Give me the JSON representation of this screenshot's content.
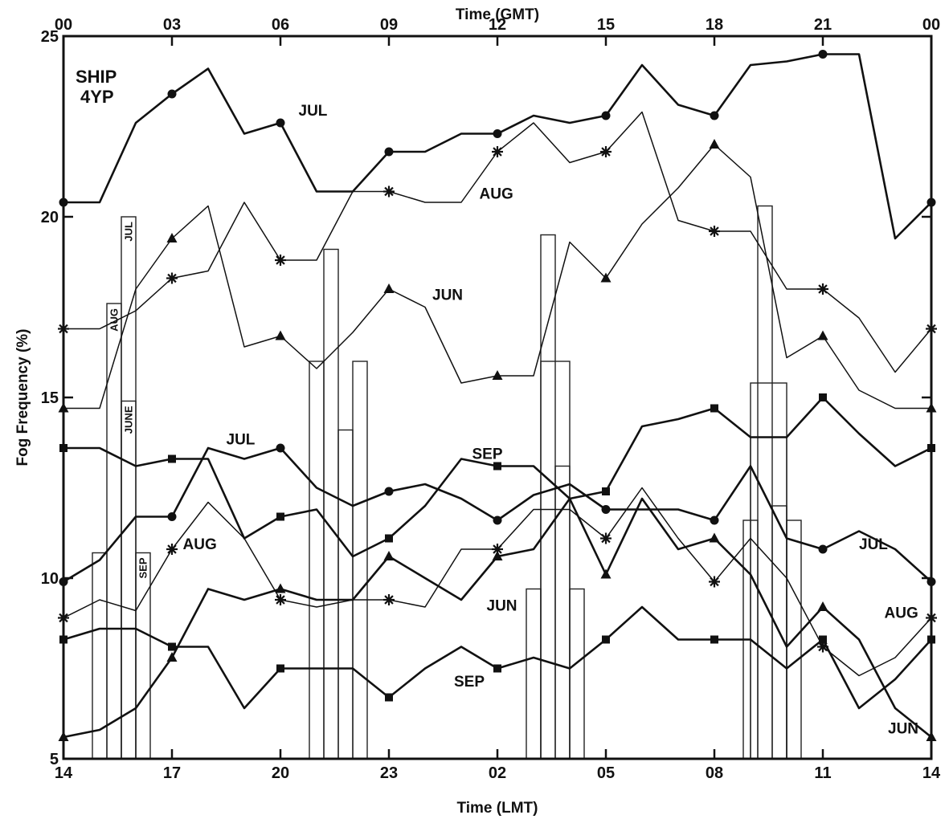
{
  "chart_data": {
    "type": "line",
    "ship_label": [
      "SHIP",
      "4YP"
    ],
    "xlabel_bottom": "Time (LMT)",
    "xlabel_top": "Time (GMT)",
    "ylabel": "Fog Frequency (%)",
    "ylim": [
      5,
      25
    ],
    "yticks": [
      5,
      10,
      15,
      20,
      25
    ],
    "xlim": [
      0,
      24
    ],
    "bottom_ticks": [
      "14",
      "17",
      "20",
      "23",
      "02",
      "05",
      "08",
      "11",
      "14"
    ],
    "top_ticks": [
      "00",
      "03",
      "06",
      "09",
      "12",
      "15",
      "18",
      "21",
      "00"
    ],
    "tick_positions": [
      0,
      3,
      6,
      9,
      12,
      15,
      18,
      21,
      24
    ],
    "series": [
      {
        "name": "JUN",
        "group": "upper",
        "marker": "triangle",
        "weight": 1.5,
        "x": [
          0,
          1,
          2,
          3,
          4,
          5,
          6,
          7,
          8,
          9,
          10,
          11,
          12,
          13,
          14,
          15,
          16,
          17,
          18,
          19,
          20,
          21,
          22,
          23,
          24
        ],
        "y": [
          14.7,
          14.7,
          18,
          19.4,
          20.3,
          16.4,
          16.7,
          15.8,
          16.8,
          18,
          17.5,
          15.4,
          15.6,
          15.6,
          19.3,
          18.3,
          19.8,
          20.8,
          22,
          21.1,
          16.1,
          16.7,
          15.2,
          14.7,
          14.7
        ]
      },
      {
        "name": "JUL",
        "group": "upper",
        "marker": "circle",
        "weight": 2.6,
        "x": [
          0,
          1,
          2,
          3,
          4,
          5,
          6,
          7,
          8,
          9,
          10,
          11,
          12,
          13,
          14,
          15,
          16,
          17,
          18,
          19,
          20,
          21,
          22,
          23,
          24
        ],
        "y": [
          20.4,
          20.4,
          22.6,
          23.4,
          24.1,
          22.3,
          22.6,
          20.7,
          20.7,
          21.8,
          21.8,
          22.3,
          22.3,
          22.8,
          22.6,
          22.8,
          24.2,
          23.1,
          22.8,
          24.2,
          24.3,
          24.5,
          24.5,
          19.4,
          20.4
        ]
      },
      {
        "name": "AUG",
        "group": "upper",
        "marker": "star",
        "weight": 1.5,
        "x": [
          0,
          1,
          2,
          3,
          4,
          5,
          6,
          7,
          8,
          9,
          10,
          11,
          12,
          13,
          14,
          15,
          16,
          17,
          18,
          19,
          20,
          21,
          22,
          23,
          24
        ],
        "y": [
          16.9,
          16.9,
          17.4,
          18.3,
          18.5,
          20.4,
          18.8,
          18.8,
          20.7,
          20.7,
          20.4,
          20.4,
          21.8,
          22.6,
          21.5,
          21.8,
          22.9,
          19.9,
          19.6,
          19.6,
          18,
          18,
          17.2,
          15.7,
          16.9
        ]
      },
      {
        "name": "SEP",
        "group": "upper",
        "marker": "square",
        "weight": 2.6,
        "x": [
          0,
          1,
          2,
          3,
          4,
          5,
          6,
          7,
          8,
          9,
          10,
          11,
          12,
          13,
          14,
          15,
          16,
          17,
          18,
          19,
          20,
          21,
          22,
          23,
          24
        ],
        "y": [
          13.6,
          13.6,
          13.1,
          13.3,
          13.3,
          11.1,
          11.7,
          11.9,
          10.6,
          11.1,
          12,
          13.3,
          13.1,
          13.1,
          12.2,
          12.4,
          14.2,
          14.4,
          14.7,
          13.9,
          13.9,
          15,
          14,
          13.1,
          13.6
        ]
      },
      {
        "name": "JUN",
        "group": "lower",
        "marker": "triangle",
        "weight": 2.6,
        "x": [
          0,
          1,
          2,
          3,
          4,
          5,
          6,
          7,
          8,
          9,
          10,
          11,
          12,
          13,
          14,
          15,
          16,
          17,
          18,
          19,
          20,
          21,
          22,
          23,
          24
        ],
        "y": [
          5.6,
          5.8,
          6.4,
          7.8,
          9.7,
          9.4,
          9.7,
          9.4,
          9.4,
          10.6,
          10,
          9.4,
          10.6,
          10.8,
          12.2,
          10.1,
          12.2,
          10.8,
          11.1,
          10.1,
          8.1,
          9.2,
          8.3,
          6.4,
          5.6
        ]
      },
      {
        "name": "JUL",
        "group": "lower",
        "marker": "circle",
        "weight": 2.6,
        "x": [
          0,
          1,
          2,
          3,
          4,
          5,
          6,
          7,
          8,
          9,
          10,
          11,
          12,
          13,
          14,
          15,
          16,
          17,
          18,
          19,
          20,
          21,
          22,
          23,
          24
        ],
        "y": [
          9.9,
          10.5,
          11.7,
          11.7,
          13.6,
          13.3,
          13.6,
          12.5,
          12,
          12.4,
          12.6,
          12.2,
          11.6,
          12.3,
          12.6,
          11.9,
          11.9,
          11.9,
          11.6,
          13.1,
          11.1,
          10.8,
          11.3,
          10.8,
          9.9
        ]
      },
      {
        "name": "AUG",
        "group": "lower",
        "marker": "star",
        "weight": 1.5,
        "x": [
          0,
          1,
          2,
          3,
          4,
          5,
          6,
          7,
          8,
          9,
          10,
          11,
          12,
          13,
          14,
          15,
          16,
          17,
          18,
          19,
          20,
          21,
          22,
          23,
          24
        ],
        "y": [
          8.9,
          9.4,
          9.1,
          10.8,
          12.1,
          11.1,
          9.4,
          9.2,
          9.4,
          9.4,
          9.2,
          10.8,
          10.8,
          11.9,
          11.9,
          11.1,
          12.5,
          11.1,
          9.9,
          11.1,
          10,
          8.1,
          7.3,
          7.8,
          8.9
        ]
      },
      {
        "name": "SEP",
        "group": "lower",
        "marker": "square",
        "weight": 2.6,
        "x": [
          0,
          1,
          2,
          3,
          4,
          5,
          6,
          7,
          8,
          9,
          10,
          11,
          12,
          13,
          14,
          15,
          16,
          17,
          18,
          19,
          20,
          21,
          22,
          23,
          24
        ],
        "y": [
          8.3,
          8.6,
          8.6,
          8.1,
          8.1,
          6.4,
          7.5,
          7.5,
          7.5,
          6.7,
          7.5,
          8.1,
          7.5,
          7.8,
          7.5,
          8.3,
          9.2,
          8.3,
          8.3,
          8.3,
          7.5,
          8.3,
          6.4,
          7.2,
          8.3
        ]
      }
    ],
    "series_labels": [
      {
        "text": "JUL",
        "x": 6.5,
        "y": 22.8
      },
      {
        "text": "AUG",
        "x": 11.5,
        "y": 20.5
      },
      {
        "text": "JUN",
        "x": 10.2,
        "y": 17.7
      },
      {
        "text": "JUL",
        "x": 4.5,
        "y": 13.7
      },
      {
        "text": "SEP",
        "x": 11.3,
        "y": 13.3
      },
      {
        "text": "AUG",
        "x": 3.3,
        "y": 10.8
      },
      {
        "text": "JUL",
        "x": 22,
        "y": 10.8
      },
      {
        "text": "JUN",
        "x": 11.7,
        "y": 9.1
      },
      {
        "text": "AUG",
        "x": 22.7,
        "y": 8.9
      },
      {
        "text": "SEP",
        "x": 10.8,
        "y": 7.0
      },
      {
        "text": "JUN",
        "x": 22.8,
        "y": 5.7
      }
    ],
    "bars": [
      {
        "x0": 0.8,
        "x1": 1.2,
        "y": 10.7
      },
      {
        "x0": 1.2,
        "x1": 1.6,
        "y": 17.6,
        "label": "AUG"
      },
      {
        "x0": 1.6,
        "x1": 2.0,
        "y": 20.0,
        "label": "JUL"
      },
      {
        "x0": 1.6,
        "x1": 2.0,
        "y": 14.9,
        "label": "JUNE"
      },
      {
        "x0": 2.0,
        "x1": 2.4,
        "y": 10.7,
        "label": "SEP"
      },
      {
        "x0": 6.8,
        "x1": 7.2,
        "y": 16.0
      },
      {
        "x0": 7.2,
        "x1": 7.6,
        "y": 19.1
      },
      {
        "x0": 7.6,
        "x1": 8.0,
        "y": 14.1
      },
      {
        "x0": 8.0,
        "x1": 8.4,
        "y": 16.0
      },
      {
        "x0": 12.8,
        "x1": 13.2,
        "y": 9.7
      },
      {
        "x0": 13.2,
        "x1": 13.6,
        "y": 19.5
      },
      {
        "x0": 13.6,
        "x1": 14.0,
        "y": 13.1
      },
      {
        "x0": 14.0,
        "x1": 14.4,
        "y": 9.7
      },
      {
        "x0": 13.2,
        "x1": 14.0,
        "y": 16.0
      },
      {
        "x0": 18.8,
        "x1": 19.2,
        "y": 11.6
      },
      {
        "x0": 19.2,
        "x1": 19.6,
        "y": 20.3
      },
      {
        "x0": 19.6,
        "x1": 20.0,
        "y": 12.0
      },
      {
        "x0": 20.0,
        "x1": 20.4,
        "y": 11.6
      },
      {
        "x0": 19.0,
        "x1": 20.0,
        "y": 15.4
      },
      {
        "x0": 19.0,
        "x1": 20.0,
        "y": 13.9
      }
    ]
  }
}
